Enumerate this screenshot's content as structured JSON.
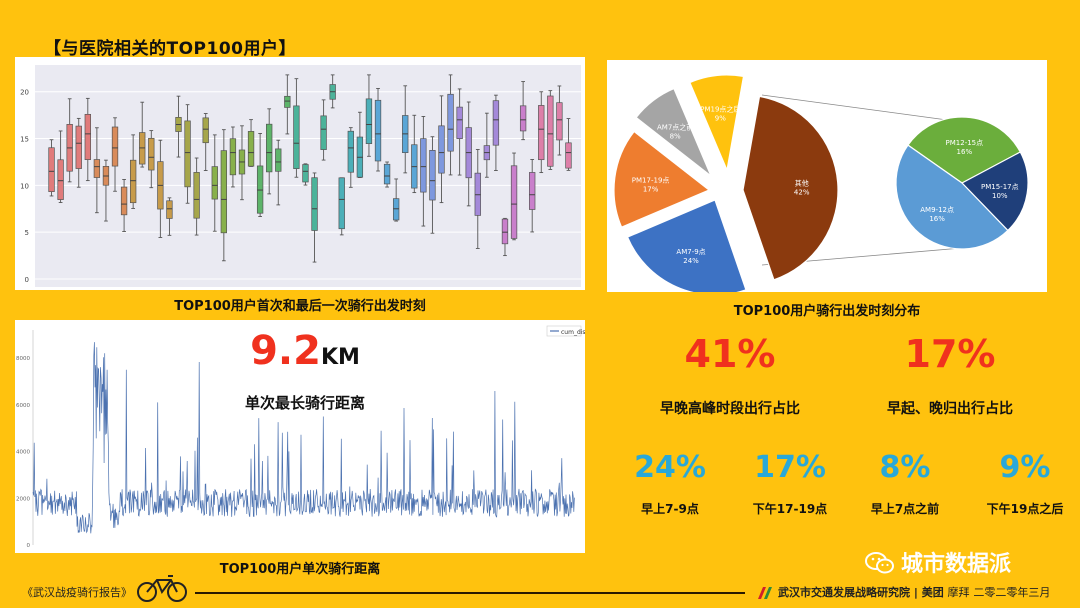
{
  "header": {
    "title": "【与医院相关的TOP100用户】"
  },
  "boxplot": {
    "caption": "TOP100用户首次和最后一次骑行出发时刻",
    "yticks": [
      "0",
      "5",
      "10",
      "15",
      "20"
    ]
  },
  "pie": {
    "caption": "TOP100用户骑行出发时刻分布",
    "slices": [
      {
        "label": "其他",
        "value": 42,
        "text": "42%",
        "color": "#8B3A0E"
      },
      {
        "label": "AM7-9点",
        "value": 24,
        "text": "24%",
        "color": "#3D72C4"
      },
      {
        "label": "PM17-19点",
        "value": 17,
        "text": "17%",
        "color": "#EE7D2F"
      },
      {
        "label": "AM7点之前",
        "value": 8,
        "text": "8%",
        "color": "#A5A5A5"
      },
      {
        "label": "PM19点之后",
        "value": 9,
        "text": "9%",
        "color": "#FFC20E"
      }
    ],
    "sub_slices": [
      {
        "label": "PM12-15点",
        "value": 16,
        "text": "16%",
        "color": "#6BAE3C"
      },
      {
        "label": "PM15-17点",
        "value": 10,
        "text": "10%",
        "color": "#1F3F7A"
      },
      {
        "label": "AM9-12点",
        "value": 16,
        "text": "16%",
        "color": "#5B9BD5"
      }
    ]
  },
  "distance": {
    "value": "9.2",
    "unit": "KM",
    "label": "单次最长骑行距离",
    "caption": "TOP100用户单次骑行距离",
    "legend": "cum_dist",
    "yticks": [
      "0",
      "2000",
      "4000",
      "6000",
      "8000"
    ]
  },
  "stats": {
    "peak_pct": "41%",
    "peak_label": "早晚高峰时段出行占比",
    "early_pct": "17%",
    "early_label": "早起、晚归出行占比",
    "items": [
      {
        "pct": "24%",
        "label": "早上7-9点"
      },
      {
        "pct": "17%",
        "label": "下午17-19点"
      },
      {
        "pct": "8%",
        "label": "早上7点之前"
      },
      {
        "pct": "9%",
        "label": "下午19点之后"
      }
    ]
  },
  "footer": {
    "report": "《武汉战疫骑行报告》",
    "institute": "武汉市交通发展战略研究院",
    "brand1": "美团",
    "brand2": "摩拜",
    "date": "二零二零年三月",
    "watermark": "城市数据派"
  },
  "chart_data": [
    {
      "type": "box",
      "title": "TOP100用户首次和最后一次骑行出发时刻",
      "ylim": [
        0,
        22
      ],
      "yticks": [
        0,
        5,
        10,
        15,
        20
      ],
      "series": [
        {
          "values": [
            11.5,
            10.5,
            14,
            14.5,
            15.5,
            12,
            11,
            14,
            8,
            10.5,
            14,
            13,
            10,
            7.5,
            16.5,
            13.5,
            8.5,
            16,
            10,
            8.5,
            13.5,
            12.5,
            13.5,
            9.5,
            13.5,
            12.5,
            19,
            14.5,
            11.5,
            7.5,
            16,
            20,
            8.5,
            14,
            13,
            16.5,
            15.5,
            11,
            7.5,
            15.5,
            12,
            12,
            10.5,
            13.5,
            16,
            17,
            13.5,
            9,
            13.5,
            17,
            5,
            8,
            17,
            9,
            16,
            15.5,
            17,
            13.5
          ]
        }
      ]
    },
    {
      "type": "pie",
      "title": "TOP100用户骑行出发时刻分布",
      "categories": [
        "其他",
        "AM7-9点",
        "PM17-19点",
        "AM7点之前",
        "PM19点之后"
      ],
      "values": [
        42,
        24,
        17,
        8,
        9
      ],
      "breakdown": {
        "categories": [
          "PM12-15点",
          "PM15-17点",
          "AM9-12点"
        ],
        "values": [
          16,
          10,
          16
        ]
      }
    },
    {
      "type": "line",
      "title": "TOP100用户单次骑行距离",
      "series": [
        {
          "name": "cum_dist"
        }
      ],
      "ylim": [
        0,
        9200
      ],
      "yticks": [
        0,
        2000,
        4000,
        6000,
        8000
      ]
    }
  ]
}
